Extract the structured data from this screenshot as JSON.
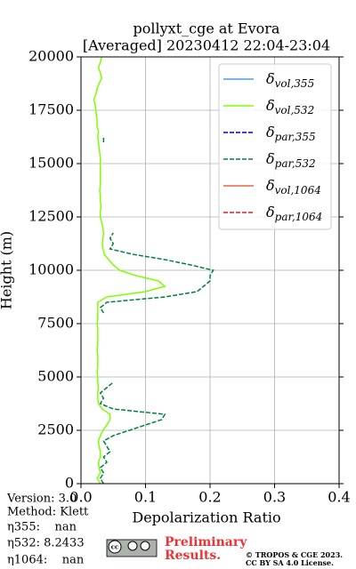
{
  "chart_data": {
    "type": "profile",
    "title": "pollyxt_cge at Evora",
    "subtitle": "[Averaged] 20230412 22:04-23:04",
    "x_label": "Depolarization Ratio",
    "y_label": "Height (m)",
    "xlim": [
      0,
      0.4
    ],
    "xticks": [
      {
        "value": 0,
        "label": "0.0"
      },
      0.1,
      0.2,
      0.3,
      0.4
    ],
    "ylim": [
      0,
      20000
    ],
    "yticks": [
      0,
      2500,
      5000,
      7500,
      10000,
      12500,
      15000,
      17500,
      20000
    ],
    "grid": true,
    "legend": "upper right",
    "heights": [
      0,
      250,
      500,
      750,
      1000,
      1250,
      1500,
      1750,
      2000,
      2250,
      2500,
      2750,
      3000,
      3250,
      3500,
      3750,
      4000,
      4250,
      4500,
      4750,
      5000,
      5250,
      5500,
      5750,
      6000,
      6250,
      6500,
      6750,
      7000,
      7250,
      7500,
      7750,
      8000,
      8250,
      8500,
      8750,
      9000,
      9250,
      9500,
      9750,
      10000,
      10250,
      10500,
      10750,
      11000,
      11250,
      11500,
      11750,
      12000,
      12250,
      12500,
      12750,
      13000,
      13250,
      13500,
      13750,
      14000,
      14250,
      14500,
      14750,
      15000,
      15250,
      15500,
      15750,
      16000,
      16250,
      16500,
      16750,
      17000,
      17250,
      17500,
      17750,
      18000,
      18250,
      18500,
      18750,
      19000,
      19250,
      19500,
      19750,
      20000
    ],
    "series": [
      {
        "name": "δvol,355",
        "color": "#4a9ee0",
        "dashed": false
      },
      {
        "name": "δvol,532",
        "color": "#80ff00",
        "dashed": false,
        "values": [
          0.03,
          0.025,
          0.03,
          0.028,
          0.027,
          0.03,
          0.03,
          0.028,
          0.027,
          0.03,
          0.034,
          0.04,
          0.045,
          0.045,
          0.033,
          0.027,
          0.026,
          0.026,
          0.027,
          0.026,
          0.026,
          0.025,
          0.026,
          0.026,
          0.026,
          0.025,
          0.026,
          0.026,
          0.026,
          0.026,
          0.025,
          0.026,
          0.026,
          0.026,
          0.026,
          0.04,
          0.1,
          0.13,
          0.12,
          0.085,
          0.06,
          0.05,
          0.043,
          0.036,
          0.034,
          0.033,
          0.034,
          0.035,
          0.034,
          0.032,
          0.03,
          0.03,
          0.031,
          0.03,
          0.03,
          0.029,
          0.03,
          0.03,
          0.03,
          0.03,
          0.03,
          0.03,
          0.029,
          0.028,
          0.027,
          0.026,
          0.027,
          0.025,
          0.025,
          0.024,
          0.023,
          0.022,
          0.02,
          0.023,
          0.025,
          0.028,
          0.032,
          0.03,
          0.027,
          0.03,
          0.032
        ]
      },
      {
        "name": "δpar,355",
        "color": "#0000cc",
        "dashed": true
      },
      {
        "name": "δpar,532",
        "color": "#008040",
        "dashed": true,
        "values": [
          0.035,
          0.03,
          0.035,
          0.03,
          0.04,
          0.035,
          0.045,
          0.04,
          0.035,
          0.05,
          0.075,
          0.1,
          0.125,
          0.13,
          0.05,
          0.03,
          0.035,
          0.03,
          0.04,
          0.05,
          null,
          null,
          null,
          null,
          null,
          null,
          null,
          null,
          null,
          null,
          null,
          null,
          0.035,
          0.03,
          0.04,
          0.13,
          0.18,
          0.19,
          0.2,
          0.2,
          0.205,
          0.17,
          0.13,
          0.08,
          0.045,
          0.05,
          0.045,
          0.05,
          null,
          null,
          null,
          null,
          null,
          null,
          null,
          null,
          null,
          null,
          null,
          null,
          null,
          null,
          null,
          null,
          0.035,
          0.035,
          null,
          null,
          null,
          null,
          null,
          null,
          null,
          null,
          null,
          null,
          null,
          null,
          null,
          null,
          null
        ]
      },
      {
        "name": "δvol,1064",
        "color": "#f0604a",
        "dashed": false
      },
      {
        "name": "δpar,1064",
        "color": "#d62020",
        "dashed": true
      }
    ],
    "annotations": [
      "Version: 3.0",
      "Method: Klett",
      "η355:    nan",
      "η532: 8.2433",
      "η1064:    nan"
    ],
    "badge": [
      "Preliminary",
      "Results."
    ],
    "copyright": [
      "© TROPOS & CGE 2023.",
      "CC BY SA 4.0 License."
    ]
  }
}
